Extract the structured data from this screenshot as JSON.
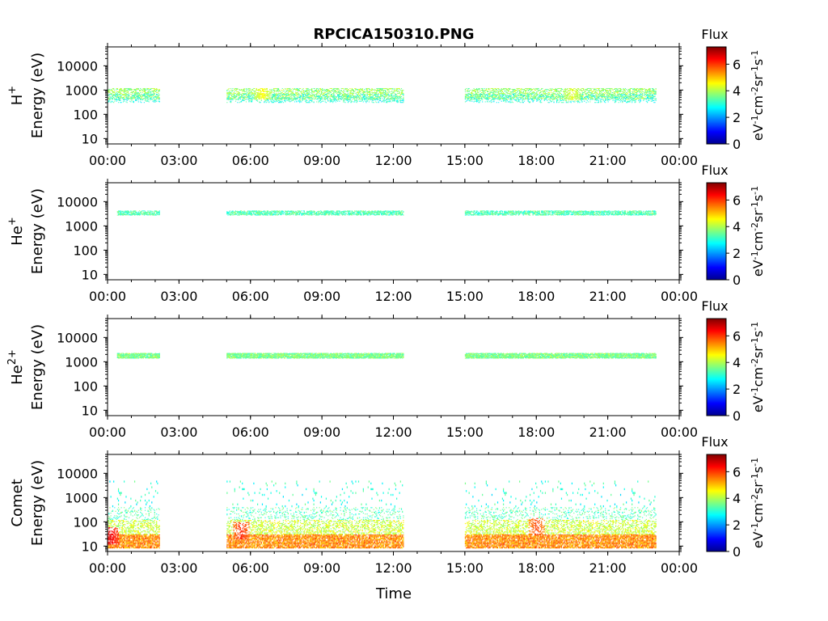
{
  "figure": {
    "title": "RPCICA150310.PNG",
    "xlabel": "Time"
  },
  "chart_data": [
    {
      "type": "heatmap",
      "species_label": "H",
      "species_sup": "+",
      "ylabel": "Energy (eV)",
      "x_ticks": [
        "00:00",
        "03:00",
        "06:00",
        "09:00",
        "12:00",
        "15:00",
        "18:00",
        "21:00",
        "00:00"
      ],
      "x_range_hours": [
        0,
        24
      ],
      "y_scale": "log",
      "y_ticks": [
        10,
        100,
        1000,
        10000
      ],
      "y_tick_labels": [
        "10",
        "100",
        "1000",
        "10000"
      ],
      "y_range": [
        6,
        60000
      ],
      "data_segments_hours": [
        [
          0.0,
          2.2
        ],
        [
          5.0,
          12.4
        ],
        [
          15.0,
          23.0
        ]
      ],
      "bands": [
        {
          "e_min": 400,
          "e_max": 1200,
          "flux": 3.8,
          "density": 0.55
        },
        {
          "e_min": 300,
          "e_max": 700,
          "flux": 3.0,
          "density": 0.25
        }
      ],
      "hotspots": [
        {
          "t": 6.5,
          "e": 900,
          "flux": 4.6
        },
        {
          "t": 19.5,
          "e": 800,
          "flux": 4.4
        }
      ],
      "colorbar": {
        "label": "Flux",
        "units_base": "eV",
        "ticks": [
          0,
          2,
          4,
          6
        ],
        "range": [
          0,
          7.3
        ]
      }
    },
    {
      "type": "heatmap",
      "species_label": "He",
      "species_sup": "+",
      "ylabel": "Energy (eV)",
      "x_ticks": [
        "00:00",
        "03:00",
        "06:00",
        "09:00",
        "12:00",
        "15:00",
        "18:00",
        "21:00",
        "00:00"
      ],
      "x_range_hours": [
        0,
        24
      ],
      "y_scale": "log",
      "y_ticks": [
        10,
        100,
        1000,
        10000
      ],
      "y_tick_labels": [
        "10",
        "100",
        "1000",
        "10000"
      ],
      "y_range": [
        6,
        60000
      ],
      "data_segments_hours": [
        [
          0.4,
          2.2
        ],
        [
          5.0,
          12.4
        ],
        [
          15.0,
          23.0
        ]
      ],
      "bands": [
        {
          "e_min": 2800,
          "e_max": 4300,
          "flux": 3.3,
          "density": 0.45
        }
      ],
      "hotspots": [
        {
          "t": 5.8,
          "e": 3400,
          "flux": 2.0
        },
        {
          "t": 18.0,
          "e": 3300,
          "flux": 2.2
        }
      ],
      "colorbar": {
        "label": "Flux",
        "units_base": "eV",
        "ticks": [
          0,
          2,
          4,
          6
        ],
        "range": [
          0,
          7.3
        ]
      }
    },
    {
      "type": "heatmap",
      "species_label": "He",
      "species_sup": "2+",
      "ylabel": "Energy (eV)",
      "x_ticks": [
        "00:00",
        "03:00",
        "06:00",
        "09:00",
        "12:00",
        "15:00",
        "18:00",
        "21:00",
        "00:00"
      ],
      "x_range_hours": [
        0,
        24
      ],
      "y_scale": "log",
      "y_ticks": [
        10,
        100,
        1000,
        10000
      ],
      "y_tick_labels": [
        "10",
        "100",
        "1000",
        "10000"
      ],
      "y_range": [
        6,
        60000
      ],
      "data_segments_hours": [
        [
          0.4,
          2.2
        ],
        [
          5.0,
          12.4
        ],
        [
          15.0,
          23.0
        ]
      ],
      "bands": [
        {
          "e_min": 1400,
          "e_max": 2300,
          "flux": 3.6,
          "density": 0.7
        }
      ],
      "hotspots": [
        {
          "t": 18.0,
          "e": 2000,
          "flux": 2.2
        },
        {
          "t": 19.0,
          "e": 1800,
          "flux": 2.4
        }
      ],
      "colorbar": {
        "label": "Flux",
        "units_base": "eV",
        "ticks": [
          0,
          2,
          4,
          6
        ],
        "range": [
          0,
          7.3
        ]
      }
    },
    {
      "type": "heatmap",
      "species_label": "Comet",
      "species_sup": "",
      "ylabel": "Energy (eV)",
      "x_ticks": [
        "00:00",
        "03:00",
        "06:00",
        "09:00",
        "12:00",
        "15:00",
        "18:00",
        "21:00",
        "00:00"
      ],
      "x_range_hours": [
        0,
        24
      ],
      "y_scale": "log",
      "y_ticks": [
        10,
        100,
        1000,
        10000
      ],
      "y_tick_labels": [
        "10",
        "100",
        "1000",
        "10000"
      ],
      "y_range": [
        6,
        60000
      ],
      "data_segments_hours": [
        [
          0.0,
          2.2
        ],
        [
          5.0,
          12.4
        ],
        [
          15.0,
          23.0
        ]
      ],
      "bands": [
        {
          "e_min": 8,
          "e_max": 30,
          "flux": 5.4,
          "density": 0.85
        },
        {
          "e_min": 30,
          "e_max": 120,
          "flux": 4.2,
          "density": 0.45
        },
        {
          "e_min": 120,
          "e_max": 400,
          "flux": 3.3,
          "density": 0.18
        },
        {
          "e_min": 400,
          "e_max": 5000,
          "flux": 3.0,
          "density": 0.04
        }
      ],
      "hotspots": [
        {
          "t": 0.1,
          "e": 25,
          "flux": 6.6
        },
        {
          "t": 5.6,
          "e": 40,
          "flux": 6.2
        },
        {
          "t": 18.0,
          "e": 60,
          "flux": 6.0
        }
      ],
      "colorbar": {
        "label": "Flux",
        "units_base": "eV",
        "ticks": [
          0,
          2,
          4,
          6
        ],
        "range": [
          0,
          7.3
        ]
      }
    }
  ]
}
